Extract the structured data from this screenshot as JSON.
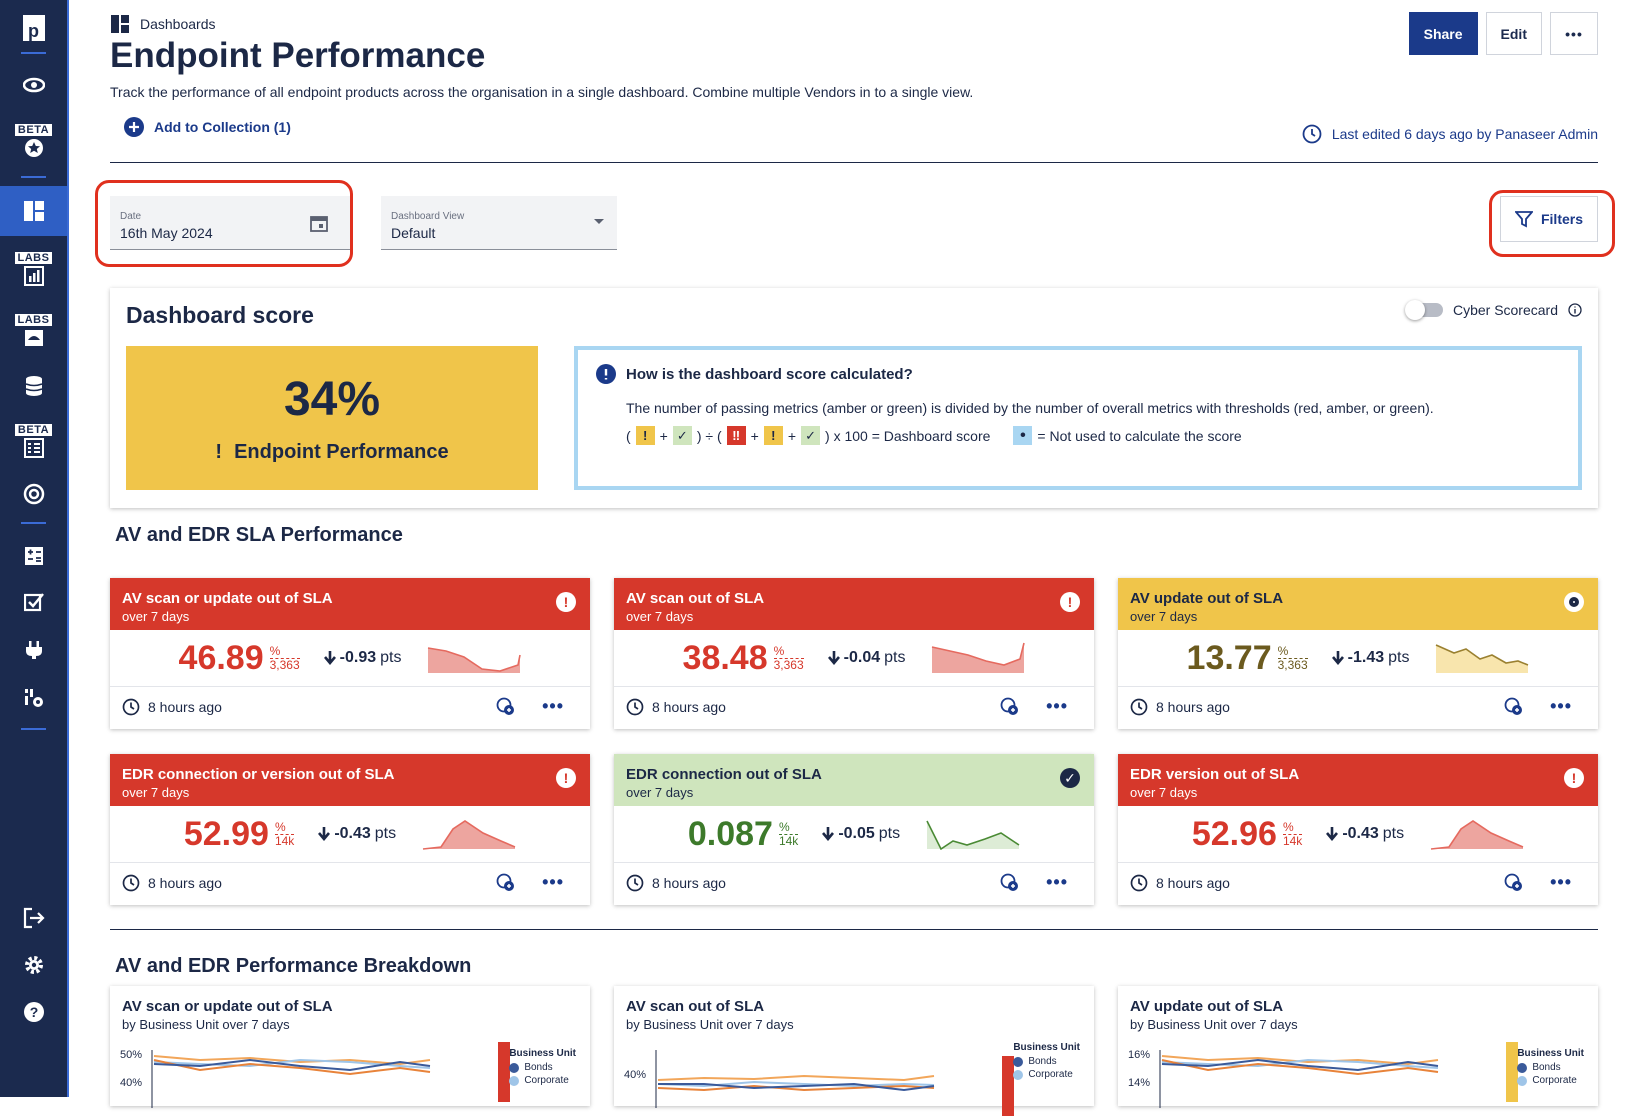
{
  "sidebar": {
    "logo": "p",
    "badges": [
      "BETA",
      "LABS",
      "LABS",
      "BETA"
    ]
  },
  "header": {
    "breadcrumb": "Dashboards",
    "title": "Endpoint Performance",
    "description": "Track the performance of all endpoint products across the organisation in a single dashboard. Combine multiple Vendors in to a single view.",
    "add_to_collection": "Add to Collection (1)",
    "last_edited": "Last edited 6 days ago by Panaseer Admin",
    "share": "Share",
    "edit": "Edit",
    "more": "•••"
  },
  "filters": {
    "date_label": "Date",
    "date_value": "16th May 2024",
    "view_label": "Dashboard View",
    "view_value": "Default",
    "filters_button": "Filters"
  },
  "score": {
    "title": "Dashboard score",
    "percent": "34%",
    "name": "Endpoint Performance",
    "toggle_label": "Cyber Scorecard",
    "info_title": "How is the dashboard score calculated?",
    "info_text": "The number of passing metrics (amber or green) is divided by the number of overall metrics with thresholds (red, amber, or green).",
    "formula_suffix": ") x 100 = Dashboard score",
    "not_used": "= Not used to calculate the score",
    "colors": {
      "amber": "#f0c54a",
      "green": "#cfe5bd",
      "red": "#d6382b",
      "blue": "#a9d6f2"
    }
  },
  "section1": {
    "title": "AV and EDR SLA Performance"
  },
  "kpis": [
    {
      "title": "AV scan or update out of SLA",
      "sub": "over 7 days",
      "value": "46.89",
      "unit": "%",
      "denom": "3,363",
      "delta": "-0.93",
      "delta_unit": "pts",
      "time": "8 hours ago",
      "status": "red"
    },
    {
      "title": "AV scan out of SLA",
      "sub": "over 7 days",
      "value": "38.48",
      "unit": "%",
      "denom": "3,363",
      "delta": "-0.04",
      "delta_unit": "pts",
      "time": "8 hours ago",
      "status": "red"
    },
    {
      "title": "AV update out of SLA",
      "sub": "over 7 days",
      "value": "13.77",
      "unit": "%",
      "denom": "3,363",
      "delta": "-1.43",
      "delta_unit": "pts",
      "time": "8 hours ago",
      "status": "amber"
    },
    {
      "title": "EDR connection or version out of SLA",
      "sub": "over 7 days",
      "value": "52.99",
      "unit": "%",
      "denom": "14k",
      "delta": "-0.43",
      "delta_unit": "pts",
      "time": "8 hours ago",
      "status": "red"
    },
    {
      "title": "EDR connection out of SLA",
      "sub": "over 7 days",
      "value": "0.087",
      "unit": "%",
      "denom": "14k",
      "delta": "-0.05",
      "delta_unit": "pts",
      "time": "8 hours ago",
      "status": "green"
    },
    {
      "title": "EDR version out of SLA",
      "sub": "over 7 days",
      "value": "52.96",
      "unit": "%",
      "denom": "14k",
      "delta": "-0.43",
      "delta_unit": "pts",
      "time": "8 hours ago",
      "status": "red"
    }
  ],
  "section2": {
    "title": "AV and EDR Performance Breakdown"
  },
  "charts": [
    {
      "title": "AV scan or update out of SLA",
      "sub": "by Business Unit over 7 days",
      "tick": "50%",
      "tick2": "40%",
      "legend_title": "Business Unit",
      "legend": [
        "Bonds",
        "Corporate"
      ]
    },
    {
      "title": "AV scan out of SLA",
      "sub": "by Business Unit over 7 days",
      "tick": "40%",
      "tick2": "",
      "legend_title": "Business Unit",
      "legend": [
        "Bonds",
        "Corporate"
      ]
    },
    {
      "title": "AV update out of SLA",
      "sub": "by Business Unit over 7 days",
      "tick": "16%",
      "tick2": "14%",
      "legend_title": "Business Unit",
      "legend": [
        "Bonds",
        "Corporate"
      ]
    }
  ]
}
